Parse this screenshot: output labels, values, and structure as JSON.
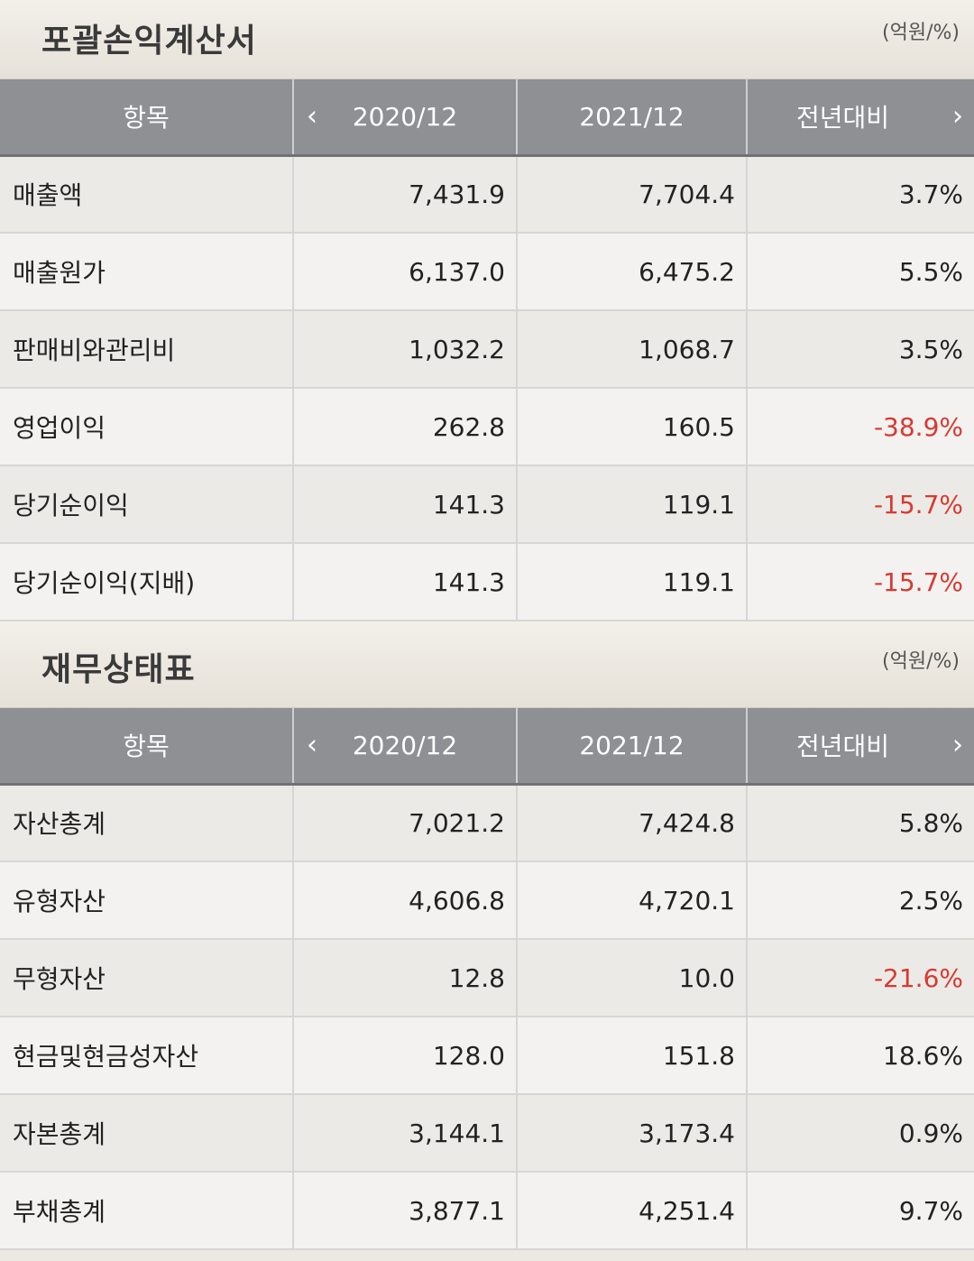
{
  "income_statement": {
    "title": "포괄손익계산서",
    "unit": "(억원/%)",
    "headers": [
      "항목",
      "2020/12",
      "2021/12",
      "전년대비"
    ],
    "rows": [
      {
        "item": "매출액",
        "y2020": "7,431.9",
        "y2021": "7,704.4",
        "yoy": "3.7%",
        "negative": false
      },
      {
        "item": "매출원가",
        "y2020": "6,137.0",
        "y2021": "6,475.2",
        "yoy": "5.5%",
        "negative": false
      },
      {
        "item": "판매비와관리비",
        "y2020": "1,032.2",
        "y2021": "1,068.7",
        "yoy": "3.5%",
        "negative": false
      },
      {
        "item": "영업이익",
        "y2020": "262.8",
        "y2021": "160.5",
        "yoy": "-38.9%",
        "negative": true
      },
      {
        "item": "당기순이익",
        "y2020": "141.3",
        "y2021": "119.1",
        "yoy": "-15.7%",
        "negative": true
      },
      {
        "item": "당기순이익(지배)",
        "y2020": "141.3",
        "y2021": "119.1",
        "yoy": "-15.7%",
        "negative": true
      }
    ]
  },
  "balance_sheet": {
    "title": "재무상태표",
    "unit": "(억원/%)",
    "headers": [
      "항목",
      "2020/12",
      "2021/12",
      "전년대비"
    ],
    "rows": [
      {
        "item": "자산총계",
        "y2020": "7,021.2",
        "y2021": "7,424.8",
        "yoy": "5.8%",
        "negative": false
      },
      {
        "item": "유형자산",
        "y2020": "4,606.8",
        "y2021": "4,720.1",
        "yoy": "2.5%",
        "negative": false
      },
      {
        "item": "무형자산",
        "y2020": "12.8",
        "y2021": "10.0",
        "yoy": "-21.6%",
        "negative": true
      },
      {
        "item": "현금및현금성자산",
        "y2020": "128.0",
        "y2021": "151.8",
        "yoy": "18.6%",
        "negative": false
      },
      {
        "item": "자본총계",
        "y2020": "3,144.1",
        "y2021": "3,173.4",
        "yoy": "0.9%",
        "negative": false
      },
      {
        "item": "부채총계",
        "y2020": "3,877.1",
        "y2021": "4,251.4",
        "yoy": "9.7%",
        "negative": false
      }
    ]
  },
  "icons": {
    "prev": "chevron-left-icon",
    "next": "chevron-right-icon"
  },
  "colors": {
    "negative": "#d63a31",
    "header_bg": "#8e9094"
  }
}
